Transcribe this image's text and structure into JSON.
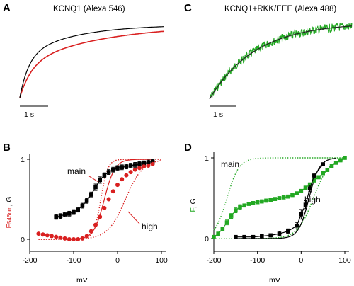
{
  "colors": {
    "red": "#d92020",
    "green": "#22a822",
    "black": "#000000",
    "dark": "#222222"
  },
  "panels": {
    "A": {
      "letter": "A",
      "title": "KCNQ1 (Alexa 546)",
      "scalebar": "1 s"
    },
    "C": {
      "letter": "C",
      "title": "KCNQ1+RKK/EEE (Alexa 488)",
      "scalebar": "1 s"
    },
    "B": {
      "letter": "B",
      "xlabel": "mV",
      "ylabel": {
        "F": "F",
        "sub": "546nm",
        "rest": ", G"
      },
      "annotations": {
        "main": "main",
        "high": "high"
      }
    },
    "D": {
      "letter": "D",
      "xlabel": "mV",
      "ylabel": {
        "F": "F",
        "rest": ", G"
      },
      "annotations": {
        "main": "main",
        "high": "high"
      }
    }
  },
  "chart_data": [
    {
      "panel": "A",
      "type": "line",
      "series": [
        {
          "name": "",
          "color": "black",
          "kind": "trace_fast"
        },
        {
          "name": "",
          "color": "red",
          "kind": "trace_slow"
        }
      ]
    },
    {
      "panel": "C",
      "type": "line",
      "series": [
        {
          "name": "",
          "color": "green",
          "kind": "trace_noisy"
        },
        {
          "name": "",
          "color": "black",
          "kind": "fit"
        }
      ]
    },
    {
      "panel": "B",
      "type": "scatter",
      "xlim": [
        -200,
        100
      ],
      "ylim": [
        0,
        1
      ],
      "xticks": [
        -200,
        -100,
        0,
        100
      ],
      "yticks": [
        0,
        1
      ],
      "xlabel": "mV",
      "series": [
        {
          "name": "",
          "color": "black",
          "errorbars": true,
          "x": [
            -140,
            -130,
            -120,
            -110,
            -100,
            -90,
            -80,
            -70,
            -60,
            -50,
            -40,
            -30,
            -20,
            -10,
            0,
            10,
            20,
            30,
            40,
            50,
            60,
            70,
            80
          ],
          "y": [
            0.28,
            0.29,
            0.31,
            0.32,
            0.34,
            0.37,
            0.42,
            0.48,
            0.56,
            0.65,
            0.74,
            0.8,
            0.84,
            0.87,
            0.89,
            0.9,
            0.91,
            0.92,
            0.93,
            0.94,
            0.95,
            0.96,
            0.97
          ],
          "err": [
            0.03,
            0.03,
            0.03,
            0.03,
            0.03,
            0.03,
            0.03,
            0.03,
            0.03,
            0.04,
            0.04,
            0.03,
            0.03,
            0.03,
            0.03,
            0.03,
            0.03,
            0.03,
            0.03,
            0.03,
            0.03,
            0.03,
            0.03
          ]
        },
        {
          "name": "",
          "color": "red",
          "errorbars": false,
          "x": [
            -180,
            -170,
            -160,
            -150,
            -140,
            -130,
            -120,
            -110,
            -100,
            -90,
            -80,
            -70,
            -60,
            -50,
            -40,
            -30,
            -20,
            -10,
            0,
            10,
            20,
            30,
            40,
            50,
            60,
            70,
            80
          ],
          "y": [
            0.07,
            0.06,
            0.05,
            0.04,
            0.03,
            0.02,
            0.01,
            0.0,
            0.0,
            0.0,
            0.01,
            0.04,
            0.1,
            0.18,
            0.28,
            0.39,
            0.5,
            0.6,
            0.68,
            0.75,
            0.8,
            0.84,
            0.87,
            0.89,
            0.91,
            0.92,
            0.94
          ]
        }
      ],
      "fits": [
        {
          "label": "main",
          "color": "red",
          "style": "dotted",
          "v_half": -38,
          "slope": 8,
          "range": [
            -180,
            100
          ]
        },
        {
          "label": "high",
          "color": "red",
          "style": "dotted",
          "v_half": 18,
          "slope": 20,
          "range": [
            -180,
            100
          ]
        },
        {
          "label": "",
          "color": "red",
          "style": "solid",
          "v_half": -30,
          "slope": 12,
          "range": [
            -110,
            80
          ]
        }
      ]
    },
    {
      "panel": "D",
      "type": "scatter",
      "xlim": [
        -200,
        100
      ],
      "ylim": [
        0,
        1
      ],
      "xticks": [
        -200,
        -100,
        0,
        100
      ],
      "yticks": [
        0,
        1
      ],
      "xlabel": "mV",
      "series": [
        {
          "name": "",
          "color": "green",
          "errorbars": true,
          "x": [
            -200,
            -190,
            -180,
            -170,
            -160,
            -150,
            -140,
            -130,
            -120,
            -110,
            -100,
            -90,
            -80,
            -70,
            -60,
            -50,
            -40,
            -30,
            -20,
            -10,
            0,
            10,
            20,
            30,
            40,
            50,
            60,
            70,
            80,
            90,
            100
          ],
          "y": [
            0.02,
            0.06,
            0.12,
            0.2,
            0.28,
            0.35,
            0.39,
            0.41,
            0.43,
            0.44,
            0.45,
            0.46,
            0.47,
            0.48,
            0.49,
            0.5,
            0.51,
            0.52,
            0.54,
            0.56,
            0.59,
            0.63,
            0.67,
            0.72,
            0.76,
            0.81,
            0.85,
            0.9,
            0.94,
            0.97,
            1.0
          ],
          "err": [
            0.01,
            0.02,
            0.02,
            0.03,
            0.03,
            0.03,
            0.03,
            0.02,
            0.02,
            0.02,
            0.02,
            0.02,
            0.02,
            0.02,
            0.02,
            0.02,
            0.02,
            0.02,
            0.02,
            0.02,
            0.02,
            0.02,
            0.02,
            0.02,
            0.02,
            0.02,
            0.02,
            0.02,
            0.02,
            0.02,
            0.01
          ]
        },
        {
          "name": "",
          "color": "black",
          "errorbars": true,
          "x": [
            -150,
            -130,
            -110,
            -90,
            -70,
            -50,
            -30,
            -10,
            0,
            10,
            20,
            30,
            50
          ],
          "y": [
            0.02,
            0.02,
            0.02,
            0.03,
            0.04,
            0.06,
            0.09,
            0.16,
            0.3,
            0.42,
            0.62,
            0.78,
            0.92
          ],
          "err": [
            0.01,
            0.01,
            0.01,
            0.01,
            0.02,
            0.03,
            0.03,
            0.04,
            0.06,
            0.05,
            0.04,
            0.03,
            0.02
          ]
        }
      ],
      "fits": [
        {
          "label": "main",
          "color": "green",
          "style": "dotted",
          "v_half": -170,
          "slope": 14,
          "range": [
            -200,
            100
          ]
        },
        {
          "label": "high",
          "color": "green",
          "style": "dotted",
          "v_half": 28,
          "slope": 18,
          "range": [
            -200,
            100
          ]
        },
        {
          "label": "",
          "color": "black",
          "style": "solid",
          "v_half": 18,
          "slope": 12,
          "range": [
            -150,
            80
          ]
        }
      ]
    }
  ]
}
